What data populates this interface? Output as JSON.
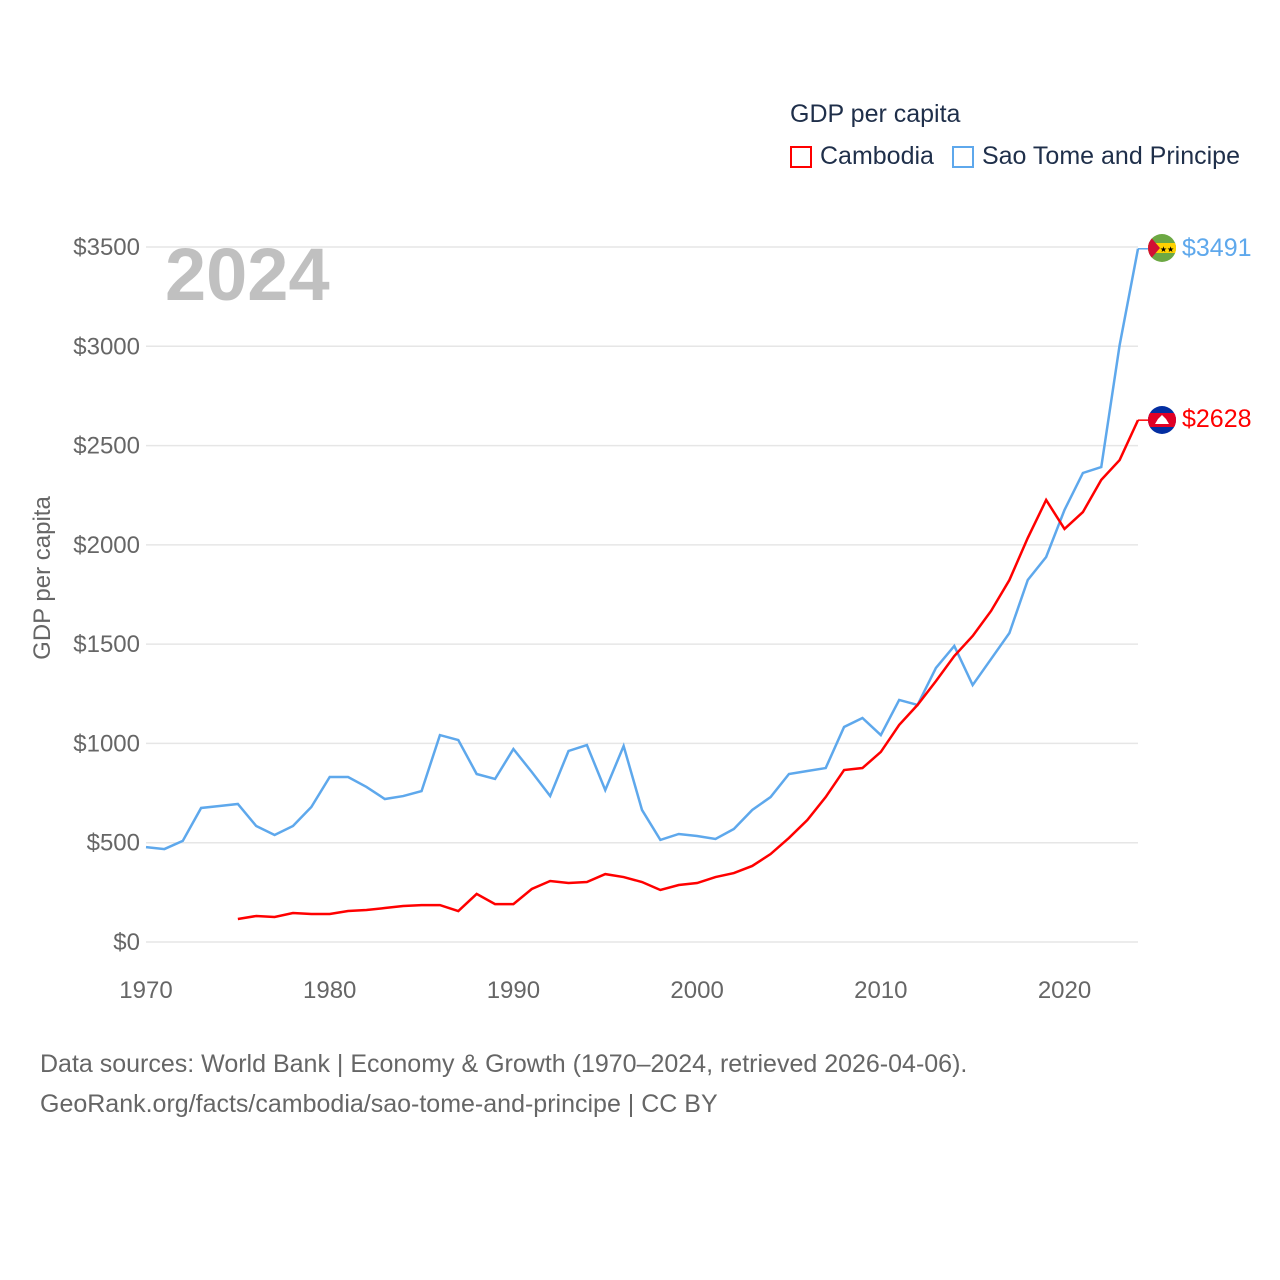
{
  "legend": {
    "title": "GDP per capita"
  },
  "footer": {
    "line1": "Data sources: World Bank | Economy & Growth (1970–2024, retrieved 2026-04-06).",
    "line2": "GeoRank.org/facts/cambodia/sao-tome-and-principe | CC BY"
  },
  "chart_data": {
    "type": "line",
    "title": "GDP per capita",
    "year_label": "2024",
    "xlabel": "",
    "ylabel": "GDP per capita",
    "xlim": [
      1970,
      2024
    ],
    "ylim": [
      0,
      3500
    ],
    "x_ticks": [
      "1970",
      "1980",
      "1990",
      "2000",
      "2010",
      "2020"
    ],
    "y_ticks": [
      "$0",
      "$500",
      "$1000",
      "$1500",
      "$2000",
      "$2500",
      "$3000",
      "$3500"
    ],
    "grid": true,
    "legend_position": "top-right",
    "series": [
      {
        "name": "Cambodia",
        "color": "#ff0000",
        "flag": "cambodia-flag",
        "end_label": "$2628",
        "start_year": 1975,
        "values": [
          116,
          131,
          126,
          146,
          141,
          141,
          156,
          161,
          171,
          181,
          186,
          186,
          156,
          242,
          191,
          191,
          267,
          307,
          297,
          302,
          342,
          327,
          302,
          262,
          287,
          297,
          327,
          347,
          383,
          443,
          524,
          614,
          730,
          866,
          876,
          957,
          1093,
          1194,
          1314,
          1440,
          1541,
          1667,
          1823,
          2035,
          2226,
          2080,
          2165,
          2327,
          2427,
          2628
        ]
      },
      {
        "name": "Sao Tome and Principe",
        "color": "#5ea8ec",
        "flag": "sao-tome-and-principe-flag",
        "end_label": "$3491",
        "start_year": 1970,
        "values": [
          478,
          468,
          509,
          675,
          685,
          695,
          584,
          539,
          584,
          680,
          831,
          831,
          781,
          720,
          735,
          760,
          1042,
          1017,
          846,
          821,
          972,
          856,
          735,
          962,
          992,
          765,
          987,
          665,
          514,
          544,
          534,
          519,
          569,
          665,
          730,
          846,
          861,
          876,
          1083,
          1128,
          1042,
          1219,
          1194,
          1380,
          1491,
          1294,
          1425,
          1556,
          1823,
          1939,
          2176,
          2362,
          2392,
          3006,
          3491
        ]
      }
    ]
  }
}
